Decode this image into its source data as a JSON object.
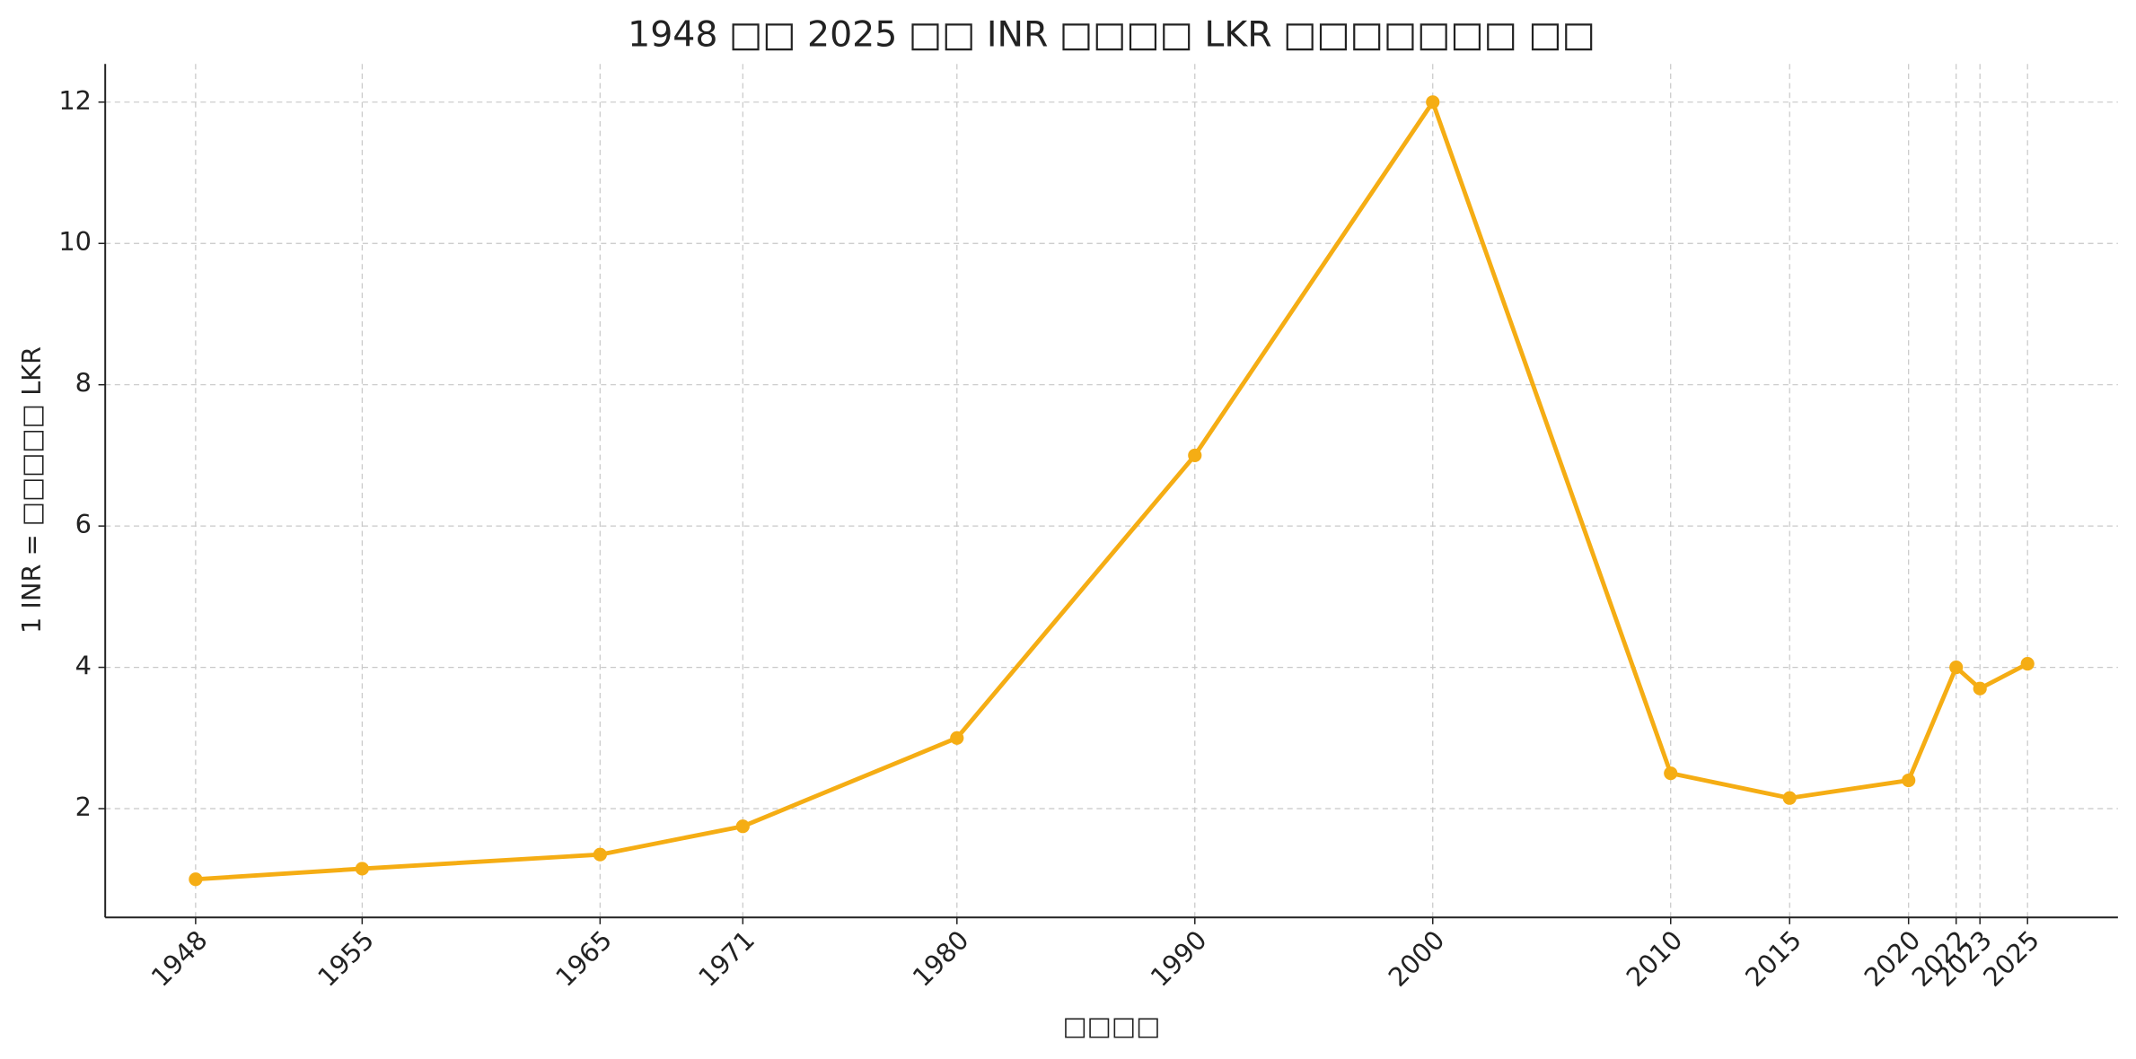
{
  "chart_data": {
    "type": "line",
    "title": "1948 □□ 2025 □□ INR □□□□ LKR □□□□□□□ □□",
    "x_label": "□□□□",
    "y_label": "1 INR = □□□□□ LKR",
    "x": [
      1948,
      1955,
      1965,
      1971,
      1980,
      1990,
      2000,
      2010,
      2015,
      2020,
      2022,
      2023,
      2025
    ],
    "series": [
      {
        "color": "#f5ad14",
        "values": [
          1.0,
          1.15,
          1.35,
          1.75,
          3.0,
          7.0,
          12.0,
          2.5,
          2.15,
          2.4,
          4.0,
          3.7,
          4.05
        ]
      }
    ],
    "xlim": [
      1944.2,
      2028.8
    ],
    "ylim": [
      0.46,
      12.54
    ],
    "xticks": [
      1948,
      1955,
      1965,
      1971,
      1980,
      1990,
      2000,
      2010,
      2015,
      2020,
      2022,
      2023,
      2025
    ],
    "yticks": [
      2,
      4,
      6,
      8,
      10,
      12
    ],
    "grid": true
  }
}
